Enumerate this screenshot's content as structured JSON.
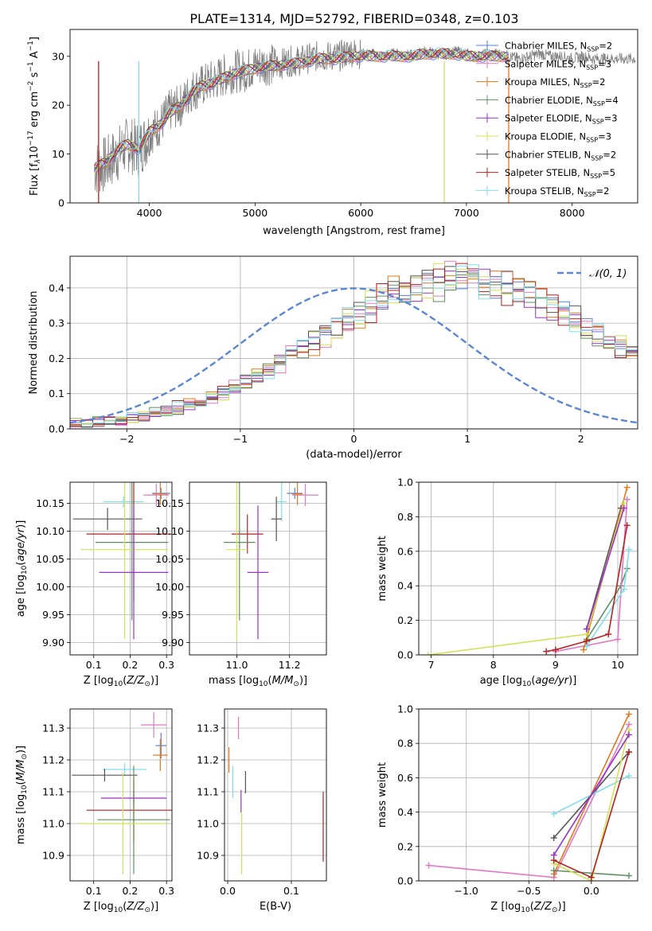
{
  "title": "PLATE=1314, MJD=52792, FIBERID=0348, z=0.103",
  "palette": {
    "chabrier_miles": "#5a7fd6",
    "salpeter_miles": "#e377c2",
    "kroupa_miles": "#e07a1f",
    "chabrier_elodie": "#5f8f5f",
    "salpeter_elodie": "#9932cc",
    "kroupa_elodie": "#d4e157",
    "chabrier_stelib": "#555555",
    "salpeter_stelib": "#b22222",
    "kroupa_stelib": "#80deea",
    "data": "#808080",
    "normal": "#5b87d1",
    "grid": "#b0b0b0"
  },
  "chart_data": [
    {
      "id": "spectrum",
      "type": "line",
      "title": "PLATE=1314, MJD=52792, FIBERID=0348, z=0.103",
      "xlabel": "wavelength [Angstrom, rest frame]",
      "ylabel": "Flux [f_λ 10^-17 erg cm^-2 s^-1 A^-1]",
      "xlim": [
        3250,
        8620
      ],
      "ylim": [
        0,
        35.5
      ],
      "xticks": [
        4000,
        5000,
        6000,
        7000,
        8000
      ],
      "yticks": [
        0,
        10,
        20,
        30
      ],
      "grid": false,
      "legend_position": "right",
      "legend": [
        {
          "label": "Chabrier MILES, N_SSP=2",
          "color_key": "chabrier_miles"
        },
        {
          "label": "Salpeter MILES, N_SSP=3",
          "color_key": "salpeter_miles"
        },
        {
          "label": "Kroupa MILES, N_SSP=2",
          "color_key": "kroupa_miles"
        },
        {
          "label": "Chabrier ELODIE, N_SSP=4",
          "color_key": "chabrier_elodie"
        },
        {
          "label": "Salpeter ELODIE, N_SSP=3",
          "color_key": "salpeter_elodie"
        },
        {
          "label": "Kroupa ELODIE, N_SSP=3",
          "color_key": "kroupa_elodie"
        },
        {
          "label": "Chabrier STELIB, N_SSP=2",
          "color_key": "chabrier_stelib"
        },
        {
          "label": "Salpeter STELIB, N_SSP=5",
          "color_key": "salpeter_stelib"
        },
        {
          "label": "Kroupa STELIB, N_SSP=2",
          "color_key": "kroupa_stelib"
        }
      ],
      "data_flux": {
        "x": [
          3500,
          3600,
          3700,
          3800,
          3900,
          4000,
          4100,
          4200,
          4300,
          4400,
          4500,
          4600,
          4700,
          4800,
          4900,
          5000,
          5100,
          5200,
          5300,
          5400,
          5500,
          5600,
          5700,
          5800,
          5900,
          6000,
          6100,
          6200,
          6300,
          6400,
          6500,
          6600,
          6700,
          6800,
          6900,
          7000,
          7100,
          7200,
          7300,
          7400,
          7500,
          7600,
          7700,
          7800,
          7900,
          8000,
          8100,
          8200,
          8300,
          8400,
          8500,
          8600
        ],
        "y": [
          7.2,
          8,
          10,
          12,
          11,
          14,
          16,
          19,
          20,
          23,
          24,
          25,
          26,
          27,
          27,
          28,
          28.5,
          28,
          29,
          29,
          29.5,
          30,
          30,
          30,
          31,
          30.5,
          30.5,
          30,
          30.5,
          30.5,
          30,
          31,
          30.5,
          30.5,
          31,
          30.5,
          30,
          30.5,
          30.5,
          30,
          29.5,
          30,
          30.5,
          30,
          30,
          29.5,
          30,
          29.5,
          29.5,
          29.5,
          29.5,
          29.5
        ]
      },
      "model_flux": {
        "x": [
          3480,
          3600,
          3700,
          3800,
          3900,
          4000,
          4100,
          4200,
          4300,
          4400,
          4500,
          4600,
          4700,
          4800,
          4900,
          5000,
          5100,
          5200,
          5300,
          5400,
          5500,
          5600,
          5700,
          5800,
          5900,
          6000,
          6100,
          6200,
          6300,
          6400,
          6500,
          6600,
          6700,
          6800,
          6900,
          7000,
          7100,
          7200,
          7300,
          7400
        ],
        "y": [
          7,
          8.5,
          11,
          12,
          11,
          14.5,
          16,
          18.5,
          20,
          22.5,
          24,
          24.5,
          25.5,
          26.5,
          27,
          27.5,
          28,
          28,
          28.5,
          28.5,
          29,
          29.5,
          29.5,
          29.5,
          30,
          30,
          30,
          30,
          30,
          30,
          30,
          30.5,
          30.5,
          30.5,
          30.5,
          30,
          30,
          30,
          30,
          30
        ]
      }
    },
    {
      "id": "residuals",
      "type": "histogram",
      "xlabel": "(data-model)/error",
      "ylabel": "Normed distribution",
      "xlim": [
        -2.5,
        2.5
      ],
      "ylim": [
        0,
        0.49
      ],
      "xticks": [
        -2,
        -1,
        0,
        1,
        2
      ],
      "yticks": [
        0.0,
        0.1,
        0.2,
        0.3,
        0.4
      ],
      "grid": true,
      "legend_position": "top-right",
      "normal_label": "𝒩(0, 1)",
      "bin_edges_range": [
        -2.5,
        2.5
      ],
      "bin_width": 0.1,
      "base_profile": [
        0.017,
        0.018,
        0.02,
        0.022,
        0.025,
        0.03,
        0.035,
        0.042,
        0.05,
        0.06,
        0.07,
        0.08,
        0.092,
        0.105,
        0.12,
        0.135,
        0.152,
        0.17,
        0.19,
        0.21,
        0.23,
        0.25,
        0.27,
        0.29,
        0.31,
        0.33,
        0.35,
        0.37,
        0.39,
        0.4,
        0.41,
        0.42,
        0.425,
        0.43,
        0.43,
        0.43,
        0.425,
        0.42,
        0.41,
        0.4,
        0.39,
        0.37,
        0.35,
        0.33,
        0.31,
        0.29,
        0.27,
        0.25,
        0.23,
        0.21
      ]
    },
    {
      "id": "age_vs_Z",
      "type": "errorbar",
      "xlabel": "Z [log10(Z/Z☉)]",
      "ylabel": "age  [log10(age/yr)]",
      "xlim": [
        0.035,
        0.315
      ],
      "ylim": [
        9.878,
        10.188
      ],
      "xticks": [
        0.1,
        0.2,
        0.3
      ],
      "yticks": [
        9.9,
        9.95,
        10.0,
        10.05,
        10.1,
        10.15
      ],
      "grid": true,
      "points": [
        {
          "key": "chabrier_miles",
          "x": 0.285,
          "xerr": 0.025,
          "y": 10.168,
          "yerr": 0.01
        },
        {
          "key": "salpeter_miles",
          "x": 0.272,
          "xerr": 0.035,
          "y": 10.165,
          "yerr": 0.02
        },
        {
          "key": "kroupa_miles",
          "x": 0.283,
          "xerr": 0.02,
          "y": 10.167,
          "yerr": 0.02
        },
        {
          "key": "kroupa_stelib",
          "x": 0.182,
          "xerr": 0.055,
          "y": 10.153,
          "yerr": 0.01
        },
        {
          "key": "chabrier_stelib",
          "x": 0.138,
          "xerr": 0.095,
          "y": 10.122,
          "yerr": 0.02
        },
        {
          "key": "salpeter_stelib",
          "x": 0.21,
          "xerr": 0.13,
          "y": 10.095,
          "yerr": 0.12
        },
        {
          "key": "chabrier_elodie",
          "x": 0.205,
          "xerr": 0.1,
          "y": 10.08,
          "yerr": 0.14
        },
        {
          "key": "kroupa_elodie",
          "x": 0.185,
          "xerr": 0.12,
          "y": 10.067,
          "yerr": 0.16
        },
        {
          "key": "salpeter_elodie",
          "x": 0.21,
          "xerr": 0.095,
          "y": 10.026,
          "yerr": 0.12
        }
      ]
    },
    {
      "id": "age_vs_mass",
      "type": "errorbar",
      "xlabel": "mass [log10(M/M☉)]",
      "ylabel": "",
      "xlim": [
        10.82,
        11.34
      ],
      "ylim": [
        9.878,
        10.188
      ],
      "xticks": [
        11.0,
        11.2
      ],
      "yticks": [
        9.9,
        9.95,
        10.0,
        10.05,
        10.1,
        10.15
      ],
      "grid": true,
      "points": [
        {
          "key": "chabrier_miles",
          "x": 11.22,
          "xerr": 0.03,
          "y": 10.168,
          "yerr": 0.01
        },
        {
          "key": "salpeter_miles",
          "x": 11.26,
          "xerr": 0.05,
          "y": 10.165,
          "yerr": 0.02
        },
        {
          "key": "kroupa_miles",
          "x": 11.23,
          "xerr": 0.02,
          "y": 10.167,
          "yerr": 0.02
        },
        {
          "key": "kroupa_stelib",
          "x": 11.17,
          "xerr": 0.02,
          "y": 10.153,
          "yerr": 0.035
        },
        {
          "key": "chabrier_stelib",
          "x": 11.15,
          "xerr": 0.02,
          "y": 10.122,
          "yerr": 0.04
        },
        {
          "key": "salpeter_stelib",
          "x": 11.04,
          "xerr": 0.06,
          "y": 10.095,
          "yerr": 0.035
        },
        {
          "key": "chabrier_elodie",
          "x": 11.01,
          "xerr": 0.06,
          "y": 10.08,
          "yerr": 0.14
        },
        {
          "key": "kroupa_elodie",
          "x": 11.0,
          "xerr": 0.04,
          "y": 10.067,
          "yerr": 0.165
        },
        {
          "key": "salpeter_elodie",
          "x": 11.08,
          "xerr": 0.04,
          "y": 10.026,
          "yerr": 0.12
        }
      ]
    },
    {
      "id": "mass_weight_vs_age",
      "type": "line",
      "xlabel": "age  [log10(age/yr)]",
      "ylabel": "mass weight",
      "xlim": [
        6.8,
        10.32
      ],
      "ylim": [
        0,
        1.0
      ],
      "xticks": [
        7,
        8,
        9,
        10
      ],
      "yticks": [
        0.0,
        0.2,
        0.4,
        0.6,
        0.8,
        1.0
      ],
      "grid": true,
      "series": [
        {
          "key": "chabrier_elodie",
          "x": [
            9.5,
            10.05,
            10.15
          ],
          "y": [
            0.09,
            0.4,
            0.5
          ]
        },
        {
          "key": "salpeter_miles",
          "x": [
            9.0,
            10.0,
            10.15
          ],
          "y": [
            0.02,
            0.09,
            0.9
          ]
        },
        {
          "key": "kroupa_stelib",
          "x": [
            9.5,
            10.1,
            10.18
          ],
          "y": [
            0.05,
            0.38,
            0.61
          ]
        },
        {
          "key": "chabrier_stelib",
          "x": [
            9.5,
            10.05
          ],
          "y": [
            0.15,
            0.85
          ]
        },
        {
          "key": "kroupa_miles",
          "x": [
            9.45,
            10.15
          ],
          "y": [
            0.03,
            0.97
          ]
        },
        {
          "key": "kroupa_elodie",
          "x": [
            6.95,
            9.5,
            10.1
          ],
          "y": [
            0.0,
            0.12,
            0.88
          ]
        },
        {
          "key": "salpeter_elodie",
          "x": [
            9.5,
            10.1
          ],
          "y": [
            0.15,
            0.85
          ]
        },
        {
          "key": "salpeter_stelib",
          "x": [
            8.85,
            9.0,
            9.5,
            9.85,
            10.15
          ],
          "y": [
            0.02,
            0.03,
            0.08,
            0.12,
            0.75
          ]
        }
      ]
    },
    {
      "id": "mass_vs_Z",
      "type": "errorbar",
      "xlabel": "Z [log10(Z/Z☉)]",
      "ylabel": "mass [log10(M/M☉)]",
      "xlim": [
        0.035,
        0.315
      ],
      "ylim": [
        10.82,
        11.36
      ],
      "xticks": [
        0.1,
        0.2,
        0.3
      ],
      "yticks": [
        10.9,
        11.0,
        11.1,
        11.2,
        11.3
      ],
      "grid": true,
      "points": [
        {
          "key": "salpeter_miles",
          "x": 0.265,
          "xerr": 0.035,
          "y": 11.31,
          "yerr": 0.04
        },
        {
          "key": "chabrier_miles",
          "x": 0.285,
          "xerr": 0.015,
          "y": 11.245,
          "yerr": 0.04
        },
        {
          "key": "kroupa_miles",
          "x": 0.283,
          "xerr": 0.02,
          "y": 11.215,
          "yerr": 0.05
        },
        {
          "key": "kroupa_stelib",
          "x": 0.185,
          "xerr": 0.06,
          "y": 11.17,
          "yerr": 0.02
        },
        {
          "key": "chabrier_stelib",
          "x": 0.13,
          "xerr": 0.09,
          "y": 11.152,
          "yerr": 0.02
        },
        {
          "key": "salpeter_elodie",
          "x": 0.21,
          "xerr": 0.09,
          "y": 11.08,
          "yerr": 0.02
        },
        {
          "key": "salpeter_stelib",
          "x": 0.21,
          "xerr": 0.13,
          "y": 11.042,
          "yerr": 0.1
        },
        {
          "key": "chabrier_elodie",
          "x": 0.21,
          "xerr": 0.1,
          "y": 11.012,
          "yerr": 0.17
        },
        {
          "key": "kroupa_elodie",
          "x": 0.18,
          "xerr": 0.12,
          "y": 11.0,
          "yerr": 0.16
        }
      ]
    },
    {
      "id": "mass_vs_EBV",
      "type": "errorbar",
      "xlabel": "E(B-V)",
      "ylabel": "",
      "xlim": [
        -0.005,
        0.155
      ],
      "ylim": [
        10.82,
        11.36
      ],
      "xticks": [
        0.0,
        0.1
      ],
      "yticks": [
        10.9,
        11.0,
        11.1,
        11.2,
        11.3
      ],
      "grid": true,
      "points": [
        {
          "key": "salpeter_miles",
          "x": 0.017,
          "xerr": 0,
          "y": 11.3,
          "yerr": 0.035
        },
        {
          "key": "kroupa_miles",
          "x": 0.002,
          "xerr": 0,
          "y": 11.2,
          "yerr": 0.04
        },
        {
          "key": "kroupa_stelib",
          "x": 0.008,
          "xerr": 0,
          "y": 11.13,
          "yerr": 0.05
        },
        {
          "key": "chabrier_stelib",
          "x": 0.028,
          "xerr": 0,
          "y": 11.13,
          "yerr": 0.035
        },
        {
          "key": "salpeter_elodie",
          "x": 0.021,
          "xerr": 0,
          "y": 11.07,
          "yerr": 0.035
        },
        {
          "key": "salpeter_stelib",
          "x": 0.15,
          "xerr": 0,
          "y": 10.99,
          "yerr": 0.11
        },
        {
          "key": "kroupa_elodie",
          "x": 0.022,
          "xerr": 0,
          "y": 10.94,
          "yerr": 0.1
        }
      ]
    },
    {
      "id": "mass_weight_vs_Z",
      "type": "line",
      "xlabel": "Z [log10(Z/Z☉)]",
      "ylabel": "mass weight",
      "xlim": [
        -1.38,
        0.37
      ],
      "ylim": [
        0,
        1.0
      ],
      "xticks": [
        -1.0,
        -0.5,
        0.0
      ],
      "yticks": [
        0.0,
        0.2,
        0.4,
        0.6,
        0.8,
        1.0
      ],
      "grid": true,
      "series": [
        {
          "key": "salpeter_miles",
          "x": [
            -1.3,
            -0.3,
            0.3
          ],
          "y": [
            0.09,
            0.02,
            0.91
          ]
        },
        {
          "key": "kroupa_stelib",
          "x": [
            -0.3,
            0.3
          ],
          "y": [
            0.39,
            0.61
          ]
        },
        {
          "key": "chabrier_stelib",
          "x": [
            -0.3,
            0.3
          ],
          "y": [
            0.25,
            0.75
          ]
        },
        {
          "key": "kroupa_miles",
          "x": [
            -0.3,
            0.3
          ],
          "y": [
            0.04,
            0.97
          ]
        },
        {
          "key": "chabrier_elodie",
          "x": [
            -0.3,
            0.3
          ],
          "y": [
            0.06,
            0.03
          ]
        },
        {
          "key": "kroupa_elodie",
          "x": [
            -0.3,
            0.0,
            0.3
          ],
          "y": [
            0.1,
            0.0,
            0.88
          ]
        },
        {
          "key": "salpeter_elodie",
          "x": [
            -0.3,
            0.3
          ],
          "y": [
            0.15,
            0.85
          ]
        },
        {
          "key": "salpeter_stelib",
          "x": [
            -0.3,
            0.0,
            0.3
          ],
          "y": [
            0.12,
            0.02,
            0.75
          ]
        }
      ]
    }
  ]
}
